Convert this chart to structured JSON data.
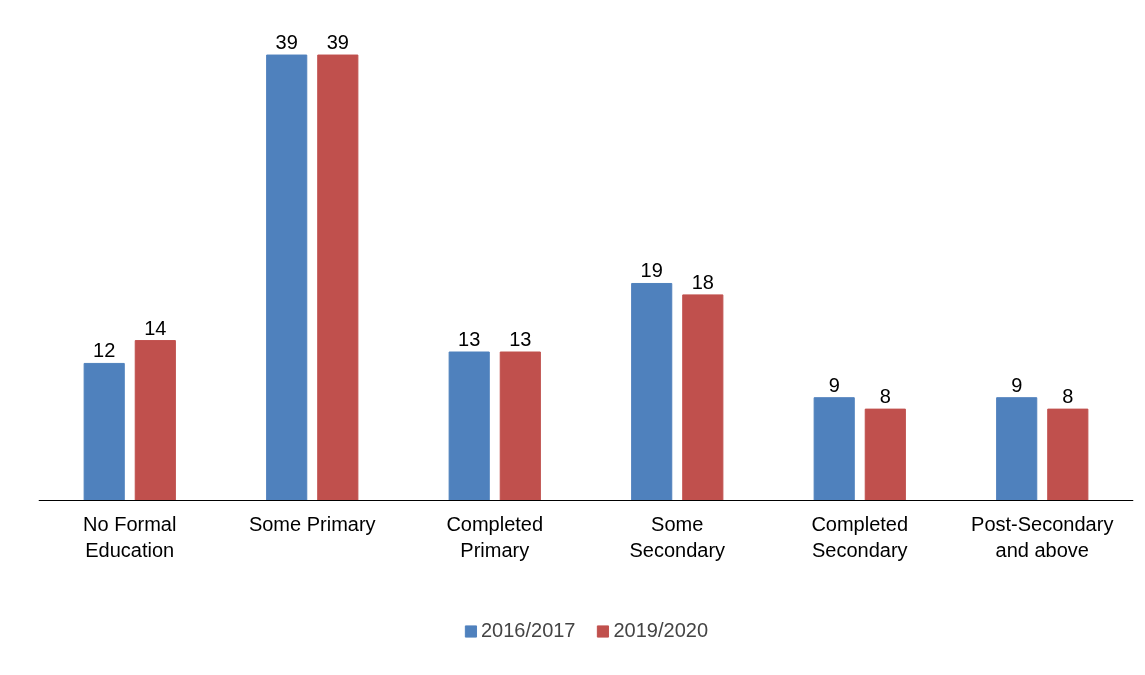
{
  "chart_data": {
    "type": "bar",
    "categories": [
      "No Formal Education",
      "Some Primary",
      "Completed Primary",
      "Some Secondary",
      "Completed Secondary",
      "Post-Secondary and above"
    ],
    "series": [
      {
        "name": "2016/2017",
        "color": "#4f81bd",
        "values": [
          12,
          39,
          13,
          19,
          9,
          9
        ]
      },
      {
        "name": "2019/2020",
        "color": "#c0504d",
        "values": [
          14,
          39,
          13,
          18,
          8,
          8
        ]
      }
    ],
    "data_labels": true,
    "legend": "bottom",
    "grid": false
  }
}
